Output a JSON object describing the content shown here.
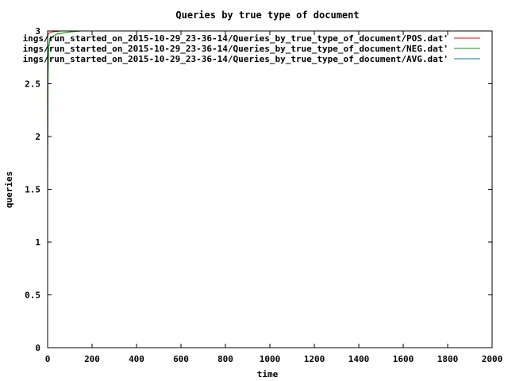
{
  "chart_data": {
    "type": "line",
    "title": "Queries by true type of document",
    "xlabel": "time",
    "ylabel": "queries",
    "xlim": [
      0,
      2000
    ],
    "ylim": [
      0,
      3
    ],
    "xticks": [
      0,
      200,
      400,
      600,
      800,
      1000,
      1200,
      1400,
      1600,
      1800,
      2000
    ],
    "yticks": [
      0,
      0.5,
      1,
      1.5,
      2,
      2.5,
      3
    ],
    "ytick_labels": [
      "0",
      "0.5",
      "1",
      "1.5",
      "2",
      "2.5",
      "3"
    ],
    "grid": false,
    "legend_position": "top-right",
    "series": [
      {
        "name": "ings/run_started_on_2015-10-29_23-36-14/Queries_by_true_type_of_document/POS.dat'",
        "color": "#ff0000",
        "x": [
          0,
          5,
          20,
          60,
          120,
          150,
          200,
          300,
          360
        ],
        "y": [
          2.95,
          2.98,
          2.99,
          3.0,
          3.0,
          3.0,
          3.0,
          3.0,
          3.0
        ]
      },
      {
        "name": "ings/run_started_on_2015-10-29_23-36-14/Queries_by_true_type_of_document/NEG.dat'",
        "color": "#00a000",
        "x": [
          0,
          2,
          5,
          10,
          40,
          100,
          150,
          200,
          400,
          600,
          800,
          1000,
          1080
        ],
        "y": [
          1.5,
          2.6,
          2.85,
          2.93,
          2.97,
          2.99,
          3.0,
          3.0,
          3.0,
          3.0,
          3.0,
          3.0,
          3.0
        ]
      },
      {
        "name": "ings/run_started_on_2015-10-29_23-36-14/Queries_by_true_type_of_document/AVG.dat'",
        "color": "#00808f",
        "x": [
          0,
          3,
          10,
          40,
          100,
          150,
          200,
          300,
          380
        ],
        "y": [
          2.0,
          2.8,
          2.93,
          2.97,
          2.99,
          3.0,
          3.0,
          3.0,
          3.0
        ]
      }
    ]
  }
}
